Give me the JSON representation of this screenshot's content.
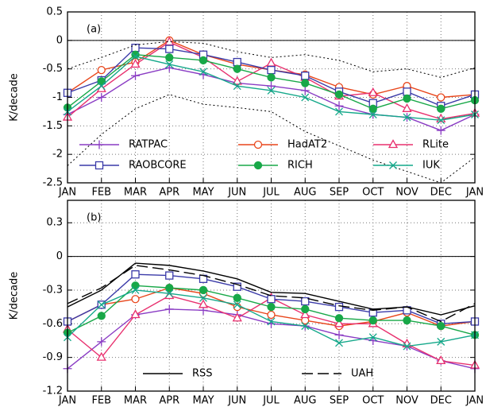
{
  "chart_data": [
    {
      "type": "line",
      "panel_label": "(a)",
      "ylabel": "K/decade",
      "categories": [
        "JAN",
        "FEB",
        "MAR",
        "APR",
        "MAY",
        "JUN",
        "JUL",
        "AUG",
        "SEP",
        "OCT",
        "NOV",
        "DEC",
        "JAN"
      ],
      "ylim": [
        -2.5,
        0.5
      ],
      "yticks": [
        -2.5,
        -2,
        -1.5,
        -1,
        -0.5,
        0,
        0.5
      ],
      "grid": true,
      "legend": "bottom",
      "series": [
        {
          "name": "RATPAC",
          "color": "#8a3cc4",
          "marker": "plus",
          "values": [
            -1.3,
            -1.0,
            -0.62,
            -0.48,
            -0.6,
            -0.75,
            -0.8,
            -0.88,
            -1.15,
            -1.3,
            -1.35,
            -1.58,
            -1.3
          ]
        },
        {
          "name": "HadAT2",
          "color": "#e8451a",
          "marker": "circle",
          "values": [
            -0.92,
            -0.52,
            -0.38,
            0.0,
            -0.25,
            -0.42,
            -0.52,
            -0.6,
            -0.82,
            -0.95,
            -0.8,
            -1.0,
            -0.95
          ]
        },
        {
          "name": "RLite",
          "color": "#e8306e",
          "marker": "triangle",
          "values": [
            -1.35,
            -0.85,
            -0.42,
            -0.03,
            -0.3,
            -0.72,
            -0.4,
            -0.65,
            -0.98,
            -0.92,
            -1.2,
            -1.38,
            -1.28
          ]
        },
        {
          "name": "RAOBCORE",
          "color": "#3a3aa8",
          "marker": "square",
          "values": [
            -0.92,
            -0.7,
            -0.13,
            -0.15,
            -0.25,
            -0.38,
            -0.52,
            -0.62,
            -0.9,
            -1.1,
            -0.9,
            -1.15,
            -0.95
          ]
        },
        {
          "name": "RICH",
          "color": "#18a848",
          "marker": "dot",
          "values": [
            -1.18,
            -0.72,
            -0.25,
            -0.3,
            -0.35,
            -0.5,
            -0.65,
            -0.75,
            -0.95,
            -1.2,
            -1.02,
            -1.2,
            -1.05
          ]
        },
        {
          "name": "IUK",
          "color": "#14a88a",
          "marker": "x",
          "values": [
            -1.25,
            -0.8,
            -0.28,
            -0.42,
            -0.55,
            -0.8,
            -0.88,
            -1.0,
            -1.25,
            -1.3,
            -1.35,
            -1.4,
            -1.3
          ]
        },
        {
          "color": "#000000",
          "dash": "dotted",
          "values": [
            -0.5,
            -0.3,
            -0.08,
            -0.02,
            -0.05,
            -0.2,
            -0.3,
            -0.25,
            -0.35,
            -0.55,
            -0.5,
            -0.65,
            -0.48
          ]
        },
        {
          "color": "#000000",
          "dash": "dotted",
          "values": [
            -2.2,
            -1.65,
            -1.2,
            -0.95,
            -1.12,
            -1.18,
            -1.25,
            -1.6,
            -1.85,
            -2.1,
            -2.3,
            -2.5,
            -2.05
          ]
        }
      ]
    },
    {
      "type": "line",
      "panel_label": "(b)",
      "ylabel": "K/decade",
      "categories": [
        "JAN",
        "FEB",
        "MAR",
        "APR",
        "MAY",
        "JUN",
        "JUL",
        "AUG",
        "SEP",
        "OCT",
        "NOV",
        "DEC",
        "JAN"
      ],
      "ylim": [
        -1.2,
        0.5
      ],
      "yticks": [
        -1.2,
        -0.9,
        -0.6,
        -0.3,
        0,
        0.3
      ],
      "grid": true,
      "legend": "bottom",
      "series": [
        {
          "color": "#8a3cc4",
          "marker": "plus",
          "values": [
            -1.0,
            -0.76,
            -0.52,
            -0.47,
            -0.48,
            -0.52,
            -0.6,
            -0.62,
            -0.7,
            -0.75,
            -0.8,
            -0.93,
            -1.0
          ]
        },
        {
          "color": "#e8451a",
          "marker": "circle",
          "values": [
            -0.58,
            -0.43,
            -0.38,
            -0.28,
            -0.33,
            -0.45,
            -0.52,
            -0.57,
            -0.62,
            -0.58,
            -0.5,
            -0.62,
            -0.58
          ]
        },
        {
          "color": "#e8306e",
          "marker": "triangle",
          "values": [
            -0.65,
            -0.9,
            -0.52,
            -0.35,
            -0.43,
            -0.55,
            -0.37,
            -0.52,
            -0.6,
            -0.6,
            -0.78,
            -0.93,
            -0.97
          ]
        },
        {
          "color": "#3a3aa8",
          "marker": "square",
          "values": [
            -0.58,
            -0.43,
            -0.16,
            -0.17,
            -0.2,
            -0.27,
            -0.38,
            -0.4,
            -0.45,
            -0.5,
            -0.48,
            -0.6,
            -0.58
          ]
        },
        {
          "color": "#18a848",
          "marker": "dot",
          "values": [
            -0.68,
            -0.53,
            -0.26,
            -0.28,
            -0.3,
            -0.37,
            -0.45,
            -0.47,
            -0.55,
            -0.57,
            -0.57,
            -0.62,
            -0.7
          ]
        },
        {
          "color": "#14a88a",
          "marker": "x",
          "values": [
            -0.72,
            -0.43,
            -0.3,
            -0.33,
            -0.37,
            -0.43,
            -0.58,
            -0.62,
            -0.77,
            -0.72,
            -0.8,
            -0.76,
            -0.7
          ]
        },
        {
          "name": "RSS",
          "color": "#000000",
          "dash": "solid",
          "values": [
            -0.45,
            -0.3,
            -0.06,
            -0.08,
            -0.13,
            -0.2,
            -0.32,
            -0.33,
            -0.4,
            -0.47,
            -0.45,
            -0.52,
            -0.44
          ]
        },
        {
          "name": "UAH",
          "color": "#000000",
          "dash": "dashed",
          "values": [
            -0.42,
            -0.28,
            -0.08,
            -0.12,
            -0.17,
            -0.25,
            -0.35,
            -0.37,
            -0.44,
            -0.48,
            -0.45,
            -0.58,
            -0.42
          ]
        }
      ]
    }
  ]
}
